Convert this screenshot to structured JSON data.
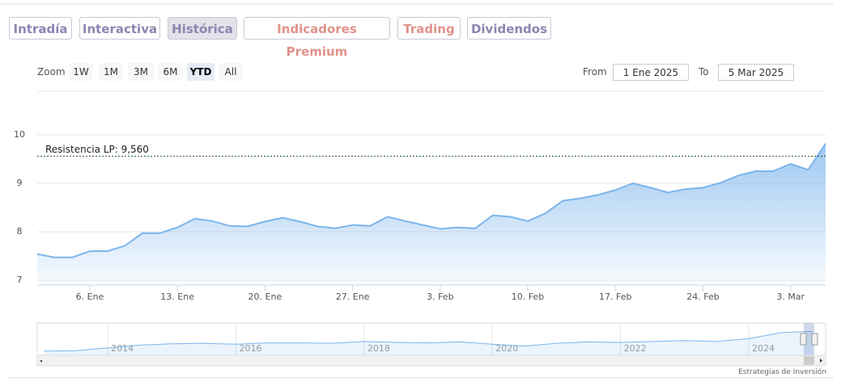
{
  "tabs": [
    "Intradía",
    "Interactiva",
    "Histórica",
    "Indicadores Premium",
    "Trading",
    "Dividendos"
  ],
  "zoom": {
    "label": "Zoom",
    "buttons": [
      "1W",
      "1M",
      "3M",
      "6M",
      "YTD",
      "All"
    ]
  },
  "range": {
    "from_label": "From",
    "from": "1 Ene 2025",
    "to_label": "To",
    "to": "5 Mar 2025"
  },
  "chart_data": {
    "type": "area",
    "color": "#7cb5ec",
    "categories": [
      null,
      null,
      null,
      "6. Ene",
      null,
      null,
      null,
      null,
      "13. Ene",
      null,
      null,
      null,
      null,
      "20. Ene",
      null,
      null,
      null,
      null,
      "27. Ene",
      null,
      null,
      null,
      null,
      "3. Feb",
      null,
      null,
      null,
      null,
      "10. Feb",
      null,
      null,
      null,
      null,
      "17. Feb",
      null,
      null,
      null,
      null,
      "24. Feb",
      null,
      null,
      null,
      null,
      "3. Mar",
      null,
      null
    ],
    "values": [
      7.54,
      7.47,
      7.47,
      7.6,
      7.6,
      7.71,
      7.97,
      7.97,
      8.09,
      8.27,
      8.22,
      8.12,
      8.11,
      8.21,
      8.29,
      8.21,
      8.11,
      8.07,
      8.14,
      8.12,
      8.31,
      8.22,
      8.14,
      8.06,
      8.09,
      8.07,
      8.34,
      8.31,
      8.22,
      8.38,
      8.64,
      8.69,
      8.76,
      8.86,
      9.0,
      8.91,
      8.81,
      8.88,
      8.91,
      9.01,
      9.16,
      9.25,
      9.25,
      9.4,
      9.28,
      9.82
    ],
    "ylim": [
      6.9,
      10.9
    ],
    "yticks": [
      7,
      8,
      9,
      10
    ],
    "grid": true,
    "annotation": {
      "label": "Resistencia LP: 9,560",
      "value": 9.56
    }
  },
  "navigator": {
    "type": "area",
    "color": "#7cb5ec",
    "x": [
      2013,
      2013.5,
      2014,
      2014.5,
      2015,
      2015.5,
      2016,
      2016.5,
      2017,
      2017.5,
      2018,
      2018.5,
      2019,
      2019.5,
      2020,
      2020.5,
      2021,
      2021.5,
      2022,
      2022.5,
      2023,
      2023.5,
      2024,
      2024.5,
      2025
    ],
    "values": [
      4.9,
      5.0,
      5.6,
      6.2,
      6.5,
      6.6,
      6.4,
      6.7,
      6.7,
      6.6,
      7.0,
      6.8,
      6.7,
      6.9,
      6.4,
      6.0,
      6.6,
      6.9,
      6.8,
      7.0,
      7.2,
      7.0,
      7.6,
      8.9,
      9.2
    ],
    "xlim": [
      2012.9,
      2025.2
    ],
    "ylim": [
      4,
      11
    ],
    "xticks": [
      2014,
      2016,
      2018,
      2020,
      2022,
      2024
    ]
  },
  "credit": "Estrategias de Inversión"
}
